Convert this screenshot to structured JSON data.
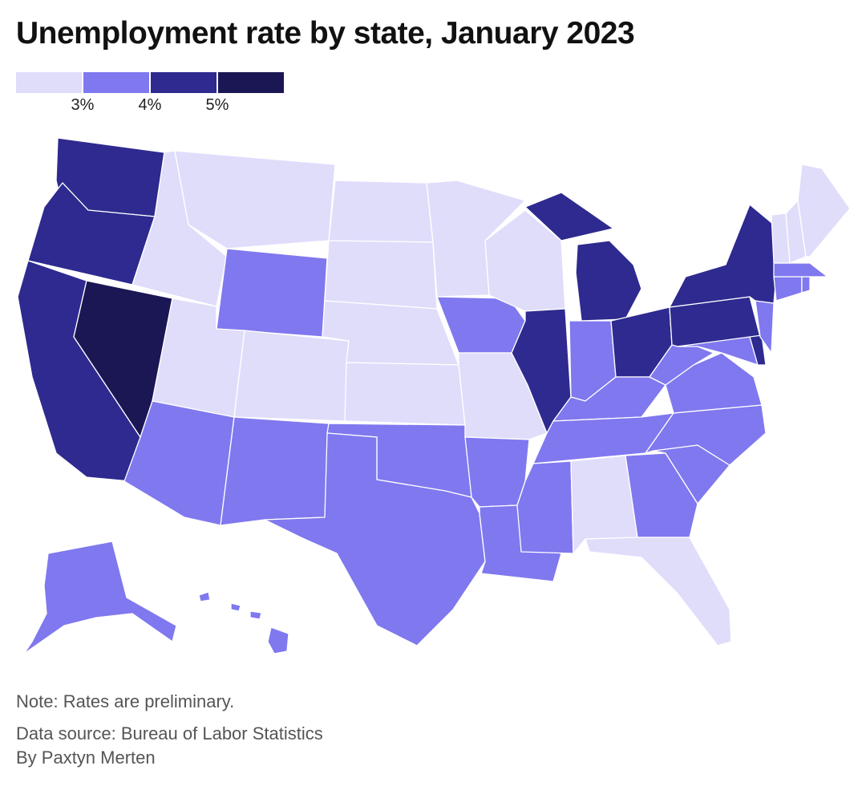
{
  "title": "Unemployment rate by state, January 2023",
  "legend": {
    "colors": [
      "#e0ddfb",
      "#8078ef",
      "#2e2a8f",
      "#1b1755"
    ],
    "ticks": [
      "3%",
      "4%",
      "5%"
    ]
  },
  "map_data": {
    "type": "choropleth",
    "classes": [
      {
        "range": "< 3%",
        "color": "#e0ddfb"
      },
      {
        "range": "3% – 4%",
        "color": "#8078ef"
      },
      {
        "range": "4% – 5%",
        "color": "#2e2a8f"
      },
      {
        "range": ">= 5%",
        "color": "#1b1755"
      }
    ],
    "states": [
      {
        "code": "WA",
        "class": 2
      },
      {
        "code": "OR",
        "class": 2
      },
      {
        "code": "CA",
        "class": 2
      },
      {
        "code": "NV",
        "class": 3
      },
      {
        "code": "ID",
        "class": 0
      },
      {
        "code": "MT",
        "class": 0
      },
      {
        "code": "WY",
        "class": 1
      },
      {
        "code": "UT",
        "class": 0
      },
      {
        "code": "CO",
        "class": 0
      },
      {
        "code": "AZ",
        "class": 1
      },
      {
        "code": "NM",
        "class": 1
      },
      {
        "code": "ND",
        "class": 0
      },
      {
        "code": "SD",
        "class": 0
      },
      {
        "code": "NE",
        "class": 0
      },
      {
        "code": "KS",
        "class": 0
      },
      {
        "code": "OK",
        "class": 1
      },
      {
        "code": "TX",
        "class": 1
      },
      {
        "code": "MN",
        "class": 0
      },
      {
        "code": "IA",
        "class": 1
      },
      {
        "code": "MO",
        "class": 0
      },
      {
        "code": "AR",
        "class": 1
      },
      {
        "code": "LA",
        "class": 1
      },
      {
        "code": "WI",
        "class": 0
      },
      {
        "code": "IL",
        "class": 2
      },
      {
        "code": "MI",
        "class": 2
      },
      {
        "code": "IN",
        "class": 1
      },
      {
        "code": "OH",
        "class": 2
      },
      {
        "code": "KY",
        "class": 1
      },
      {
        "code": "TN",
        "class": 1
      },
      {
        "code": "MS",
        "class": 1
      },
      {
        "code": "AL",
        "class": 0
      },
      {
        "code": "GA",
        "class": 1
      },
      {
        "code": "FL",
        "class": 0
      },
      {
        "code": "SC",
        "class": 1
      },
      {
        "code": "NC",
        "class": 1
      },
      {
        "code": "VA",
        "class": 1
      },
      {
        "code": "WV",
        "class": 1
      },
      {
        "code": "MD",
        "class": 1
      },
      {
        "code": "DE",
        "class": 2
      },
      {
        "code": "PA",
        "class": 2
      },
      {
        "code": "NJ",
        "class": 1
      },
      {
        "code": "NY",
        "class": 2
      },
      {
        "code": "CT",
        "class": 1
      },
      {
        "code": "RI",
        "class": 1
      },
      {
        "code": "MA",
        "class": 1
      },
      {
        "code": "VT",
        "class": 0
      },
      {
        "code": "NH",
        "class": 0
      },
      {
        "code": "ME",
        "class": 0
      },
      {
        "code": "AK",
        "class": 1
      },
      {
        "code": "HI",
        "class": 1
      }
    ]
  },
  "footer": {
    "note": "Note: Rates are preliminary.",
    "source": "Data source: Bureau of Labor Statistics",
    "byline": "By Paxtyn Merten"
  }
}
